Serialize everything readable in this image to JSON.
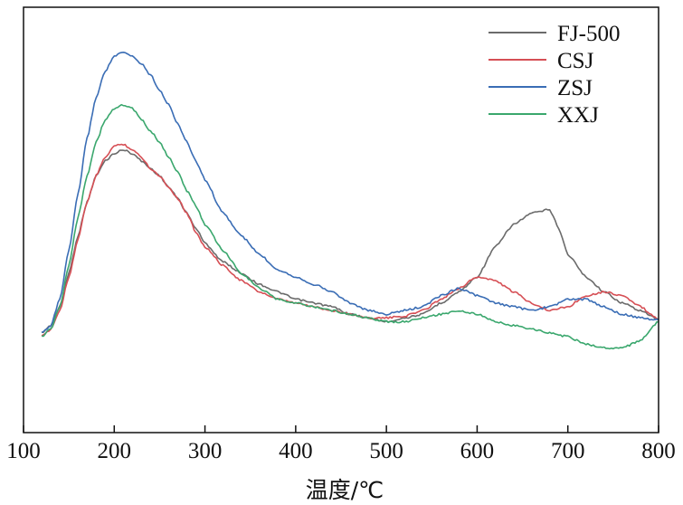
{
  "chart_data": {
    "type": "line",
    "title": "",
    "xlabel": "温度/℃",
    "ylabel": "",
    "xlim": [
      100,
      800
    ],
    "ylim": [
      0,
      100
    ],
    "x_ticks": [
      100,
      200,
      300,
      400,
      500,
      600,
      700,
      800
    ],
    "y_ticks_shown": false,
    "grid": false,
    "legend_position": "top-right",
    "series": [
      {
        "name": "FJ-500",
        "color": "#6b6b6b",
        "x": [
          120,
          130,
          140,
          150,
          160,
          170,
          180,
          190,
          200,
          210,
          220,
          230,
          240,
          250,
          260,
          270,
          280,
          290,
          300,
          320,
          340,
          360,
          380,
          400,
          420,
          440,
          460,
          480,
          500,
          520,
          540,
          560,
          580,
          600,
          620,
          640,
          660,
          680,
          690,
          700,
          720,
          740,
          760,
          780,
          800
        ],
        "y": [
          25,
          27,
          32,
          41,
          51,
          60,
          67,
          71,
          73,
          74,
          73,
          71,
          69,
          67,
          64,
          61,
          57,
          53,
          49,
          44,
          41,
          38,
          36,
          34,
          33,
          32,
          30,
          29,
          28,
          29,
          30,
          33,
          36,
          40,
          48,
          54,
          57,
          58,
          53,
          46,
          40,
          36,
          33,
          31,
          28.5
        ]
      },
      {
        "name": "CSJ",
        "color": "#d64f55",
        "x": [
          120,
          130,
          140,
          150,
          160,
          170,
          180,
          190,
          200,
          210,
          220,
          230,
          240,
          250,
          260,
          270,
          280,
          290,
          300,
          320,
          340,
          360,
          380,
          400,
          420,
          440,
          460,
          480,
          500,
          520,
          540,
          560,
          580,
          600,
          620,
          640,
          660,
          680,
          700,
          720,
          740,
          760,
          780,
          800
        ],
        "y": [
          24,
          26,
          31,
          40,
          50,
          60,
          67,
          72,
          75,
          75.5,
          74,
          72,
          69,
          67,
          64,
          61,
          57,
          52,
          48,
          43,
          39,
          36,
          34,
          33,
          32,
          31,
          30,
          29,
          29,
          29.5,
          31,
          34,
          37,
          40,
          39,
          36,
          33,
          31,
          32,
          35,
          36,
          35,
          32,
          28.5
        ]
      },
      {
        "name": "ZSJ",
        "color": "#3a6db5",
        "x": [
          120,
          130,
          140,
          150,
          160,
          170,
          180,
          190,
          200,
          210,
          220,
          230,
          240,
          250,
          260,
          270,
          280,
          290,
          300,
          320,
          340,
          360,
          380,
          400,
          420,
          440,
          460,
          480,
          500,
          520,
          540,
          560,
          580,
          600,
          620,
          640,
          660,
          680,
          700,
          720,
          740,
          760,
          780,
          800
        ],
        "y": [
          25,
          27,
          34,
          47,
          62,
          77,
          88,
          95,
          99,
          100,
          99,
          97,
          94,
          90,
          86,
          81,
          76,
          71,
          66,
          57,
          51,
          46,
          42,
          40,
          38,
          36,
          33,
          31,
          30,
          31,
          32,
          35,
          37,
          35,
          33,
          32,
          31,
          32,
          34,
          34,
          32,
          30,
          29,
          28.5
        ]
      },
      {
        "name": "XXJ",
        "color": "#3aa76d",
        "x": [
          120,
          130,
          140,
          150,
          160,
          170,
          180,
          190,
          200,
          210,
          220,
          230,
          240,
          250,
          260,
          270,
          280,
          290,
          300,
          320,
          340,
          360,
          380,
          400,
          420,
          440,
          460,
          480,
          500,
          520,
          540,
          560,
          580,
          600,
          620,
          640,
          660,
          680,
          700,
          720,
          740,
          760,
          780,
          800
        ],
        "y": [
          24,
          26,
          32,
          43,
          56,
          67,
          76,
          82,
          85,
          86,
          85,
          82,
          79,
          76,
          72,
          68,
          63,
          59,
          54,
          47,
          41,
          37,
          34,
          33,
          32,
          31,
          30,
          29,
          28,
          28,
          29,
          30,
          31,
          30,
          28,
          27,
          26,
          25,
          24,
          22,
          21,
          21,
          23,
          28
        ]
      }
    ]
  }
}
